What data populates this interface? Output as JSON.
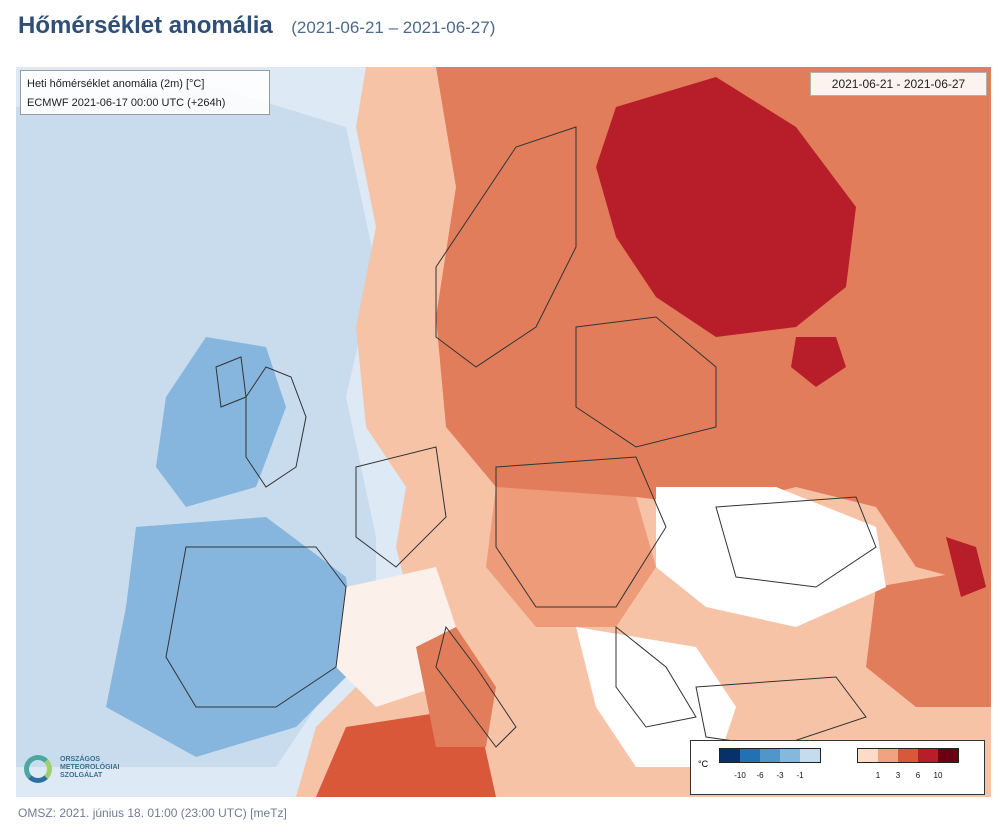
{
  "header": {
    "title": "Hőmérséklet anomália",
    "period": "(2021-06-21 – 2021-06-27)"
  },
  "map": {
    "info_line1": "Heti hőmérséklet anomália (2m) [°C]",
    "info_line2": "ECMWF 2021-06-17 00:00 UTC (+264h)",
    "date_range": "2021-06-21 - 2021-06-27"
  },
  "legend": {
    "unit": "°C",
    "cold_colors": [
      "#08306b",
      "#2171b5",
      "#4f96c9",
      "#86b8de",
      "#c5dcee"
    ],
    "warm_colors": [
      "#fcdcc6",
      "#f2a27e",
      "#d9583a",
      "#b81d2a",
      "#6b0012"
    ],
    "cold_ticks": [
      "-10",
      "-6",
      "-3",
      "-1"
    ],
    "warm_ticks": [
      "1",
      "3",
      "6",
      "10"
    ]
  },
  "logo": {
    "line1": "ORSZÁGOS",
    "line2": "METEOROLÓGIAI",
    "line3": "SZOLGÁLAT"
  },
  "footer": {
    "text": "OMSZ: 2021. június 18. 01:00 (23:00  UTC)  [meTz]"
  }
}
